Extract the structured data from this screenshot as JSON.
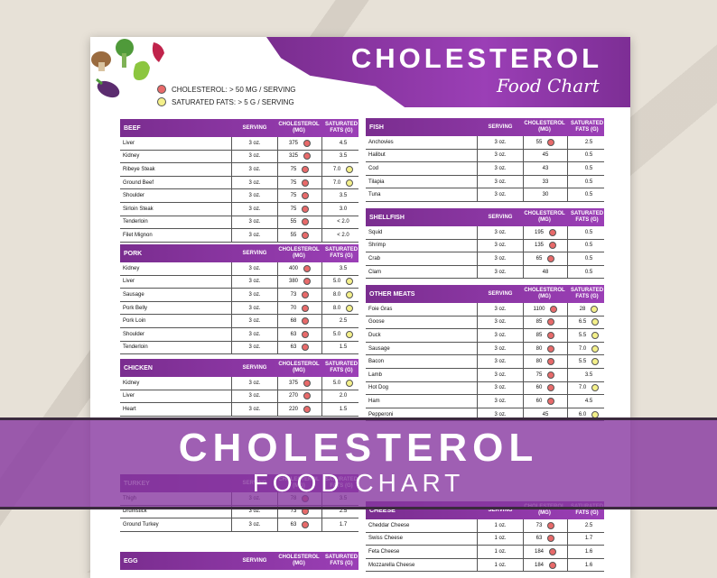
{
  "title": "CHOLESTEROL",
  "subtitle": "Food Chart",
  "legend": [
    {
      "label": "CHOLESTEROL:  > 50 MG / SERVING",
      "color": "#e86a6a"
    },
    {
      "label": "SATURATED FATS:  > 5 G / SERVING",
      "color": "#f4f08a"
    }
  ],
  "columns": {
    "serving": "SERVING",
    "chol": "CHOLESTEROL (MG)",
    "sat": "SATURATED FATS (G)"
  },
  "sections": [
    {
      "name": "BEEF",
      "rows": [
        {
          "food": "Liver",
          "serving": "3 oz.",
          "chol": "375",
          "cflag": true,
          "sat": "4.5",
          "sflag": false
        },
        {
          "food": "Kidney",
          "serving": "3 oz.",
          "chol": "325",
          "cflag": true,
          "sat": "3.5",
          "sflag": false
        },
        {
          "food": "Ribeye Steak",
          "serving": "3 oz.",
          "chol": "75",
          "cflag": true,
          "sat": "7.0",
          "sflag": true
        },
        {
          "food": "Ground Beef",
          "serving": "3 oz.",
          "chol": "75",
          "cflag": true,
          "sat": "7.0",
          "sflag": true
        },
        {
          "food": "Shoulder",
          "serving": "3 oz.",
          "chol": "75",
          "cflag": true,
          "sat": "3.5",
          "sflag": false
        },
        {
          "food": "Sirloin Steak",
          "serving": "3 oz.",
          "chol": "75",
          "cflag": true,
          "sat": "3.0",
          "sflag": false
        },
        {
          "food": "Tenderloin",
          "serving": "3 oz.",
          "chol": "55",
          "cflag": true,
          "sat": "< 2.0",
          "sflag": false
        },
        {
          "food": "Filet Mignon",
          "serving": "3 oz.",
          "chol": "55",
          "cflag": true,
          "sat": "< 2.0",
          "sflag": false
        }
      ]
    },
    {
      "name": "PORK",
      "rows": [
        {
          "food": "Kidney",
          "serving": "3 oz.",
          "chol": "400",
          "cflag": true,
          "sat": "3.5",
          "sflag": false
        },
        {
          "food": "Liver",
          "serving": "3 oz.",
          "chol": "380",
          "cflag": true,
          "sat": "5.0",
          "sflag": true
        },
        {
          "food": "Sausage",
          "serving": "3 oz.",
          "chol": "73",
          "cflag": true,
          "sat": "8.0",
          "sflag": true
        },
        {
          "food": "Pork Belly",
          "serving": "3 oz.",
          "chol": "70",
          "cflag": true,
          "sat": "8.0",
          "sflag": true
        },
        {
          "food": "Pork Loin",
          "serving": "3 oz.",
          "chol": "68",
          "cflag": true,
          "sat": "2.5",
          "sflag": false
        },
        {
          "food": "Shoulder",
          "serving": "3 oz.",
          "chol": "63",
          "cflag": true,
          "sat": "5.0",
          "sflag": true
        },
        {
          "food": "Tenderloin",
          "serving": "3 oz.",
          "chol": "63",
          "cflag": true,
          "sat": "1.5",
          "sflag": false
        }
      ]
    },
    {
      "name": "CHICKEN",
      "rows": [
        {
          "food": "Kidney",
          "serving": "3 oz.",
          "chol": "375",
          "cflag": true,
          "sat": "5.0",
          "sflag": true
        },
        {
          "food": "Liver",
          "serving": "3 oz.",
          "chol": "270",
          "cflag": true,
          "sat": "2.0",
          "sflag": false
        },
        {
          "food": "Heart",
          "serving": "3 oz.",
          "chol": "220",
          "cflag": true,
          "sat": "1.5",
          "sflag": false
        }
      ]
    },
    {
      "name": "TURKEY",
      "rows": [
        {
          "food": "Thigh",
          "serving": "3 oz.",
          "chol": "78",
          "cflag": true,
          "sat": "3.5",
          "sflag": false
        },
        {
          "food": "Drumstick",
          "serving": "3 oz.",
          "chol": "73",
          "cflag": true,
          "sat": "2.5",
          "sflag": false
        },
        {
          "food": "Ground Turkey",
          "serving": "3 oz.",
          "chol": "63",
          "cflag": true,
          "sat": "1.7",
          "sflag": false
        }
      ]
    },
    {
      "name": "EGG",
      "rows": []
    },
    {
      "name": "FISH",
      "rows": [
        {
          "food": "Anchovies",
          "serving": "3 oz.",
          "chol": "55",
          "cflag": true,
          "sat": "2.5",
          "sflag": false
        },
        {
          "food": "Halibut",
          "serving": "3 oz.",
          "chol": "45",
          "cflag": false,
          "sat": "0.5",
          "sflag": false
        },
        {
          "food": "Cod",
          "serving": "3 oz.",
          "chol": "43",
          "cflag": false,
          "sat": "0.5",
          "sflag": false
        },
        {
          "food": "Tilapia",
          "serving": "3 oz.",
          "chol": "33",
          "cflag": false,
          "sat": "0.5",
          "sflag": false
        },
        {
          "food": "Tuna",
          "serving": "3 oz.",
          "chol": "30",
          "cflag": false,
          "sat": "0.5",
          "sflag": false
        }
      ]
    },
    {
      "name": "SHELLFISH",
      "rows": [
        {
          "food": "Squid",
          "serving": "3 oz.",
          "chol": "195",
          "cflag": true,
          "sat": "0.5",
          "sflag": false
        },
        {
          "food": "Shrimp",
          "serving": "3 oz.",
          "chol": "135",
          "cflag": true,
          "sat": "0.5",
          "sflag": false
        },
        {
          "food": "Crab",
          "serving": "3 oz.",
          "chol": "65",
          "cflag": true,
          "sat": "0.5",
          "sflag": false
        },
        {
          "food": "Clam",
          "serving": "3 oz.",
          "chol": "48",
          "cflag": false,
          "sat": "0.5",
          "sflag": false
        }
      ]
    },
    {
      "name": "OTHER MEATS",
      "rows": [
        {
          "food": "Foie Gras",
          "serving": "3 oz.",
          "chol": "1100",
          "cflag": true,
          "sat": "28",
          "sflag": true
        },
        {
          "food": "Goose",
          "serving": "3 oz.",
          "chol": "85",
          "cflag": true,
          "sat": "6.5",
          "sflag": true
        },
        {
          "food": "Duck",
          "serving": "3 oz.",
          "chol": "85",
          "cflag": true,
          "sat": "5.5",
          "sflag": true
        },
        {
          "food": "Sausage",
          "serving": "3 oz.",
          "chol": "80",
          "cflag": true,
          "sat": "7.0",
          "sflag": true
        },
        {
          "food": "Bacon",
          "serving": "3 oz.",
          "chol": "80",
          "cflag": true,
          "sat": "5.5",
          "sflag": true
        },
        {
          "food": "Lamb",
          "serving": "3 oz.",
          "chol": "75",
          "cflag": true,
          "sat": "3.5",
          "sflag": false
        },
        {
          "food": "Hot Dog",
          "serving": "3 oz.",
          "chol": "60",
          "cflag": true,
          "sat": "7.0",
          "sflag": true
        },
        {
          "food": "Ham",
          "serving": "3 oz.",
          "chol": "60",
          "cflag": true,
          "sat": "4.5",
          "sflag": false
        },
        {
          "food": "Pepperoni",
          "serving": "3 oz.",
          "chol": "45",
          "cflag": false,
          "sat": "6.0",
          "sflag": true
        }
      ]
    },
    {
      "name": "CHEESE",
      "rows": [
        {
          "food": "Cheddar Cheese",
          "serving": "1 oz.",
          "chol": "73",
          "cflag": true,
          "sat": "2.5",
          "sflag": false
        },
        {
          "food": "Swiss Cheese",
          "serving": "1 oz.",
          "chol": "63",
          "cflag": true,
          "sat": "1.7",
          "sflag": false
        },
        {
          "food": "Feta Cheese",
          "serving": "1 oz.",
          "chol": "184",
          "cflag": true,
          "sat": "1.6",
          "sflag": false
        },
        {
          "food": "Mozzarella Cheese",
          "serving": "1 oz.",
          "chol": "184",
          "cflag": true,
          "sat": "1.6",
          "sflag": false
        }
      ]
    }
  ],
  "banner": {
    "line1": "CHOLESTEROL",
    "line2": "FOOD CHART"
  }
}
